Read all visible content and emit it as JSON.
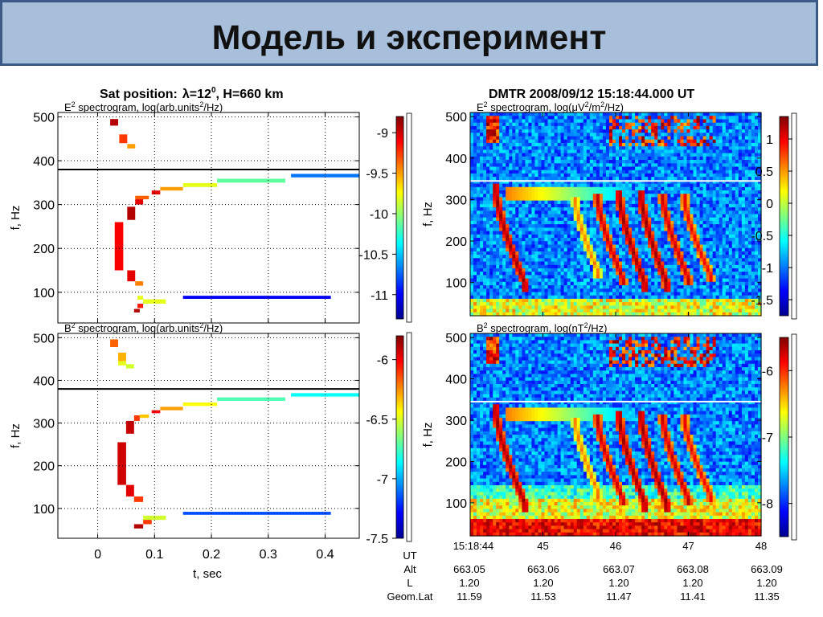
{
  "slide": {
    "title": "Модель и эксперимент"
  },
  "left": {
    "header_prefix": "Sat position:",
    "header_lambda": "λ=12",
    "header_degree": "0",
    "header_alt": ", H=660 km",
    "xlabel": "t, sec",
    "ylabel": "f, Hz"
  },
  "right": {
    "header": "DMTR  2008/09/12  15:18:44.000  UT",
    "ylabel": "f, Hz"
  },
  "ephemeris": {
    "row_labels": [
      "UT",
      "Alt",
      "L",
      "Geom.Lat"
    ],
    "columns": [
      [
        "15:18:44",
        "663.05",
        "1.20",
        "11.59"
      ],
      [
        "45",
        "663.06",
        "1.20",
        "11.53"
      ],
      [
        "46",
        "663.07",
        "1.20",
        "11.47"
      ],
      [
        "47",
        "663.08",
        "1.20",
        "11.41"
      ],
      [
        "48",
        "663.09",
        "1.20",
        "11.35"
      ]
    ]
  },
  "chart_data": [
    {
      "type": "heatmap",
      "panel": "model-E",
      "title": "E² spectrogram, log(arb.units²/Hz)",
      "title_parts": [
        "E",
        "2",
        " spectrogram, log(arb.units",
        "2",
        "/Hz)"
      ],
      "xlabel": "",
      "ylabel": "f, Hz",
      "xlim": [
        -0.07,
        0.46
      ],
      "ylim": [
        30,
        510
      ],
      "x_ticks": [
        0,
        0.1,
        0.2,
        0.3,
        0.4
      ],
      "y_ticks": [
        100,
        200,
        300,
        400,
        500
      ],
      "divider_f": 380,
      "colorbar": {
        "ticks": [
          -9,
          -9.5,
          -10,
          -10.5,
          -11
        ],
        "range": [
          -11.3,
          -8.8
        ]
      },
      "cells": [
        {
          "t0": 0.022,
          "t1": 0.036,
          "f0": 480,
          "f1": 495,
          "v": 0.95
        },
        {
          "t0": 0.038,
          "t1": 0.052,
          "f0": 440,
          "f1": 460,
          "v": 0.82
        },
        {
          "t0": 0.052,
          "t1": 0.066,
          "f0": 428,
          "f1": 438,
          "v": 0.72
        },
        {
          "t0": 0.03,
          "t1": 0.045,
          "f0": 150,
          "f1": 260,
          "v": 0.88
        },
        {
          "t0": 0.052,
          "t1": 0.066,
          "f0": 265,
          "f1": 295,
          "v": 0.95
        },
        {
          "t0": 0.066,
          "t1": 0.08,
          "f0": 300,
          "f1": 312,
          "v": 0.9
        },
        {
          "t0": 0.066,
          "t1": 0.09,
          "f0": 312,
          "f1": 320,
          "v": 0.78
        },
        {
          "t0": 0.095,
          "t1": 0.11,
          "f0": 323,
          "f1": 332,
          "v": 0.9
        },
        {
          "t0": 0.11,
          "t1": 0.15,
          "f0": 332,
          "f1": 340,
          "v": 0.72
        },
        {
          "t0": 0.15,
          "t1": 0.21,
          "f0": 340,
          "f1": 349,
          "v": 0.6
        },
        {
          "t0": 0.21,
          "t1": 0.33,
          "f0": 350,
          "f1": 359,
          "v": 0.47
        },
        {
          "t0": 0.34,
          "t1": 0.46,
          "f0": 362,
          "f1": 370,
          "v": 0.24
        },
        {
          "t0": 0.052,
          "t1": 0.066,
          "f0": 125,
          "f1": 150,
          "v": 0.9
        },
        {
          "t0": 0.066,
          "t1": 0.08,
          "f0": 115,
          "f1": 125,
          "v": 0.75
        },
        {
          "t0": 0.07,
          "t1": 0.08,
          "f0": 83,
          "f1": 92,
          "v": 0.6
        },
        {
          "t0": 0.08,
          "t1": 0.12,
          "f0": 74,
          "f1": 84,
          "v": 0.6
        },
        {
          "t0": 0.07,
          "t1": 0.08,
          "f0": 64,
          "f1": 74,
          "v": 0.85
        },
        {
          "t0": 0.064,
          "t1": 0.074,
          "f0": 54,
          "f1": 62,
          "v": 0.95
        },
        {
          "t0": 0.15,
          "t1": 0.41,
          "f0": 85,
          "f1": 92,
          "v": 0.12
        }
      ]
    },
    {
      "type": "heatmap",
      "panel": "model-B",
      "title": "B² spectrogram, log(arb.units²/Hz)",
      "title_parts": [
        "B",
        "2",
        " spectrogram, log(arb.units",
        "2",
        "/Hz)"
      ],
      "xlabel": "t, sec",
      "ylabel": "f, Hz",
      "xlim": [
        -0.07,
        0.46
      ],
      "ylim": [
        30,
        510
      ],
      "x_ticks": [
        0,
        0.1,
        0.2,
        0.3,
        0.4
      ],
      "y_ticks": [
        100,
        200,
        300,
        400,
        500
      ],
      "divider_f": 380,
      "colorbar": {
        "ticks": [
          -6,
          -6.5,
          -7,
          -7.5
        ],
        "range": [
          -7.5,
          -5.8
        ]
      },
      "cells": [
        {
          "t0": 0.022,
          "t1": 0.036,
          "f0": 478,
          "f1": 496,
          "v": 0.78
        },
        {
          "t0": 0.036,
          "t1": 0.05,
          "f0": 445,
          "f1": 465,
          "v": 0.7
        },
        {
          "t0": 0.036,
          "t1": 0.05,
          "f0": 435,
          "f1": 445,
          "v": 0.6
        },
        {
          "t0": 0.05,
          "t1": 0.064,
          "f0": 428,
          "f1": 438,
          "v": 0.58
        },
        {
          "t0": 0.035,
          "t1": 0.05,
          "f0": 155,
          "f1": 255,
          "v": 0.92
        },
        {
          "t0": 0.05,
          "t1": 0.064,
          "f0": 275,
          "f1": 305,
          "v": 0.93
        },
        {
          "t0": 0.064,
          "t1": 0.074,
          "f0": 305,
          "f1": 318,
          "v": 0.82
        },
        {
          "t0": 0.074,
          "t1": 0.09,
          "f0": 312,
          "f1": 320,
          "v": 0.68
        },
        {
          "t0": 0.095,
          "t1": 0.11,
          "f0": 323,
          "f1": 330,
          "v": 0.88
        },
        {
          "t0": 0.11,
          "t1": 0.15,
          "f0": 330,
          "f1": 338,
          "v": 0.72
        },
        {
          "t0": 0.15,
          "t1": 0.21,
          "f0": 340,
          "f1": 348,
          "v": 0.62
        },
        {
          "t0": 0.21,
          "t1": 0.33,
          "f0": 352,
          "f1": 360,
          "v": 0.45
        },
        {
          "t0": 0.34,
          "t1": 0.46,
          "f0": 362,
          "f1": 370,
          "v": 0.38
        },
        {
          "t0": 0.05,
          "t1": 0.064,
          "f0": 128,
          "f1": 155,
          "v": 0.9
        },
        {
          "t0": 0.064,
          "t1": 0.08,
          "f0": 115,
          "f1": 128,
          "v": 0.82
        },
        {
          "t0": 0.08,
          "t1": 0.12,
          "f0": 73,
          "f1": 83,
          "v": 0.58
        },
        {
          "t0": 0.08,
          "t1": 0.095,
          "f0": 63,
          "f1": 73,
          "v": 0.82
        },
        {
          "t0": 0.064,
          "t1": 0.08,
          "f0": 53,
          "f1": 63,
          "v": 0.95
        },
        {
          "t0": 0.15,
          "t1": 0.41,
          "f0": 85,
          "f1": 92,
          "v": 0.2
        }
      ]
    },
    {
      "type": "heatmap",
      "panel": "dmtr-E",
      "title": "E² spectrogram, log(μV²/m²/Hz)",
      "title_parts": [
        "E",
        "2",
        " spectrogram, log(μV",
        "2",
        "/m",
        "2",
        "/Hz)"
      ],
      "xlabel": "",
      "ylabel": "f, Hz",
      "xlim": [
        0,
        4
      ],
      "ylim": [
        20,
        510
      ],
      "x_ticks": [
        0,
        1,
        2,
        3,
        4
      ],
      "y_ticks": [
        100,
        200,
        300,
        400,
        500
      ],
      "divider_f": 345,
      "colorbar": {
        "ticks": [
          1,
          0.5,
          0,
          -0.5,
          -1,
          -1.5
        ],
        "range": [
          -1.75,
          1.35
        ]
      },
      "description_elements": {
        "background": "noisy blue with bright bottom band",
        "whistler_traces": [
          {
            "t0": 0.5,
            "f_top": 320,
            "f_bottom": 100,
            "bend": 0.35,
            "strength": 1.0
          },
          {
            "t0": 1.9,
            "f_top": 300,
            "f_bottom": 110,
            "bend": 0.3,
            "strength": 0.9
          },
          {
            "t0": 2.2,
            "f_top": 305,
            "f_bottom": 100,
            "bend": 0.3,
            "strength": 1.0
          },
          {
            "t0": 2.5,
            "f_top": 305,
            "f_bottom": 100,
            "bend": 0.3,
            "strength": 1.0
          },
          {
            "t0": 2.8,
            "f_top": 300,
            "f_bottom": 110,
            "bend": 0.3,
            "strength": 0.9
          },
          {
            "t0": 3.1,
            "f_top": 295,
            "f_bottom": 120,
            "bend": 0.3,
            "strength": 0.8
          },
          {
            "t0": 1.6,
            "f_top": 290,
            "f_bottom": 130,
            "bend": 0.25,
            "strength": 0.5
          }
        ]
      }
    },
    {
      "type": "heatmap",
      "panel": "dmtr-B",
      "title": "B² spectrogram, log(nT²/Hz)",
      "title_parts": [
        "B",
        "2",
        " spectrogram, log(nT",
        "2",
        "/Hz)"
      ],
      "xlabel": "",
      "ylabel": "f, Hz",
      "xlim": [
        0,
        4
      ],
      "ylim": [
        20,
        510
      ],
      "x_ticks": [
        0,
        1,
        2,
        3,
        4
      ],
      "x_tick_labels": [
        "15:18:44",
        "45",
        "46",
        "47",
        "48"
      ],
      "y_ticks": [
        100,
        200,
        300,
        400,
        500
      ],
      "divider_f": 345,
      "colorbar": {
        "ticks": [
          -6,
          -7,
          -8
        ],
        "range": [
          -8.5,
          -5.5
        ]
      }
    }
  ]
}
